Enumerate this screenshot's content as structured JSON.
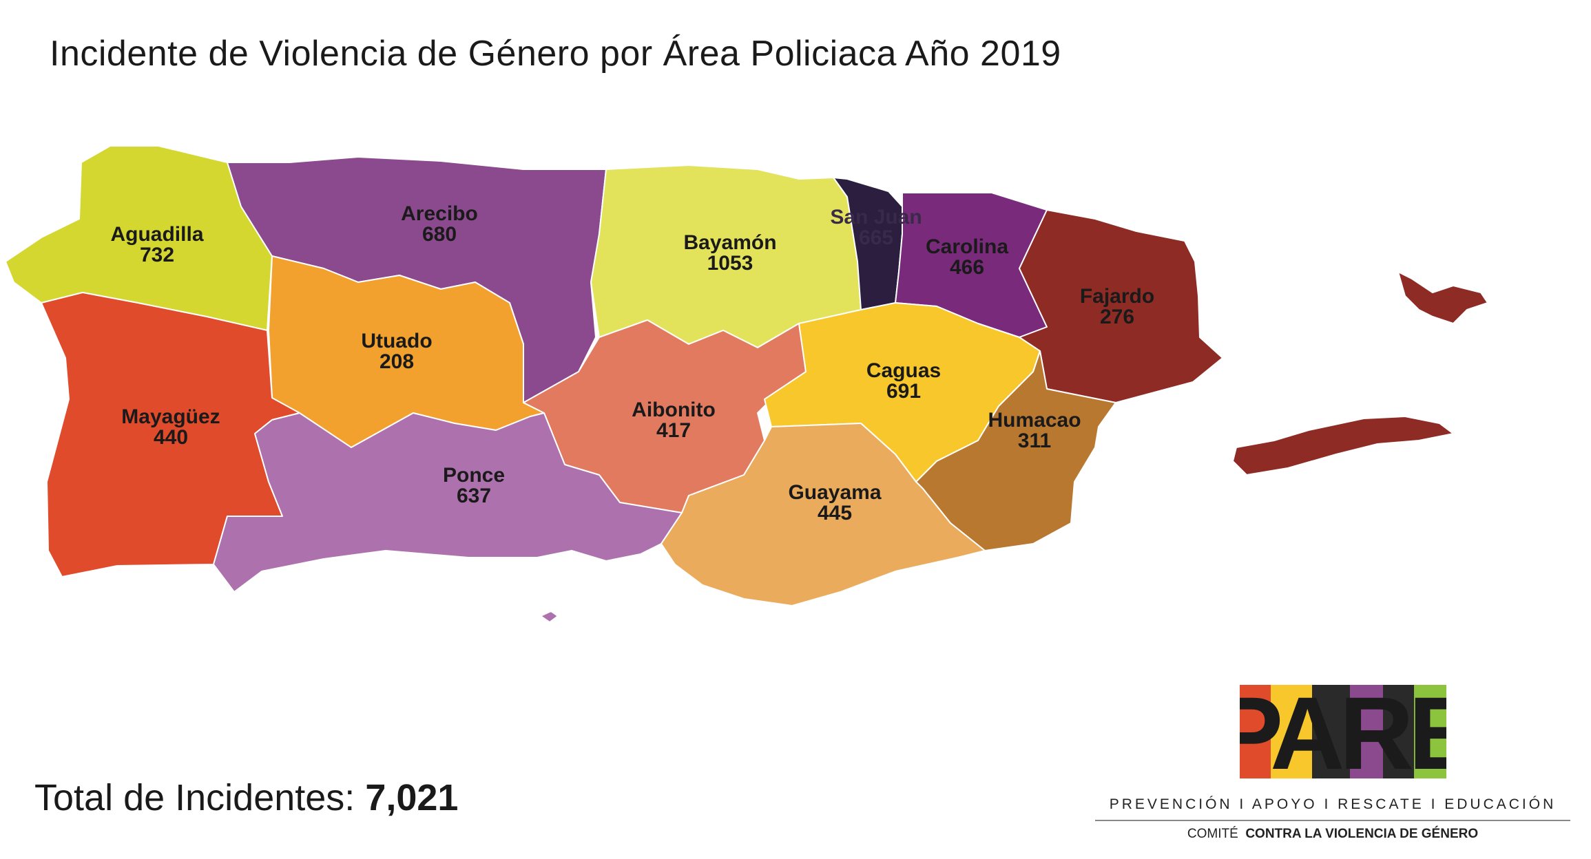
{
  "title": "Incidente de Violencia de Género por Área Policiaca Año 2019",
  "areas": [
    {
      "name": "Aguadilla",
      "value": "732",
      "color": "#d3d72f"
    },
    {
      "name": "Arecibo",
      "value": "680",
      "color": "#8b498e"
    },
    {
      "name": "Bayamón",
      "value": "1053",
      "color": "#e2e35a"
    },
    {
      "name": "San Juan",
      "value": "665",
      "color": "#2b1e3f"
    },
    {
      "name": "Carolina",
      "value": "466",
      "color": "#7a2a7b"
    },
    {
      "name": "Fajardo",
      "value": "276",
      "color": "#8e2b25"
    },
    {
      "name": "Utuado",
      "value": "208",
      "color": "#f2a12e"
    },
    {
      "name": "Mayagüez",
      "value": "440",
      "color": "#e04b2b"
    },
    {
      "name": "Aibonito",
      "value": "417",
      "color": "#e27a60"
    },
    {
      "name": "Caguas",
      "value": "691",
      "color": "#f8c72b"
    },
    {
      "name": "Humacao",
      "value": "311",
      "color": "#b97830"
    },
    {
      "name": "Ponce",
      "value": "637",
      "color": "#ad72ad"
    },
    {
      "name": "Guayama",
      "value": "445",
      "color": "#eaac5c"
    }
  ],
  "total": {
    "label": "Total de Incidentes:",
    "value": "7,021"
  },
  "logo": {
    "brand": "PARE",
    "tagline": "PREVENCIÓN  I  APOYO  I  RESCATE  I  EDUCACIÓN",
    "committee_prefix": "COMITÉ",
    "committee_name": "CONTRA LA VIOLENCIA DE GÉNERO"
  }
}
